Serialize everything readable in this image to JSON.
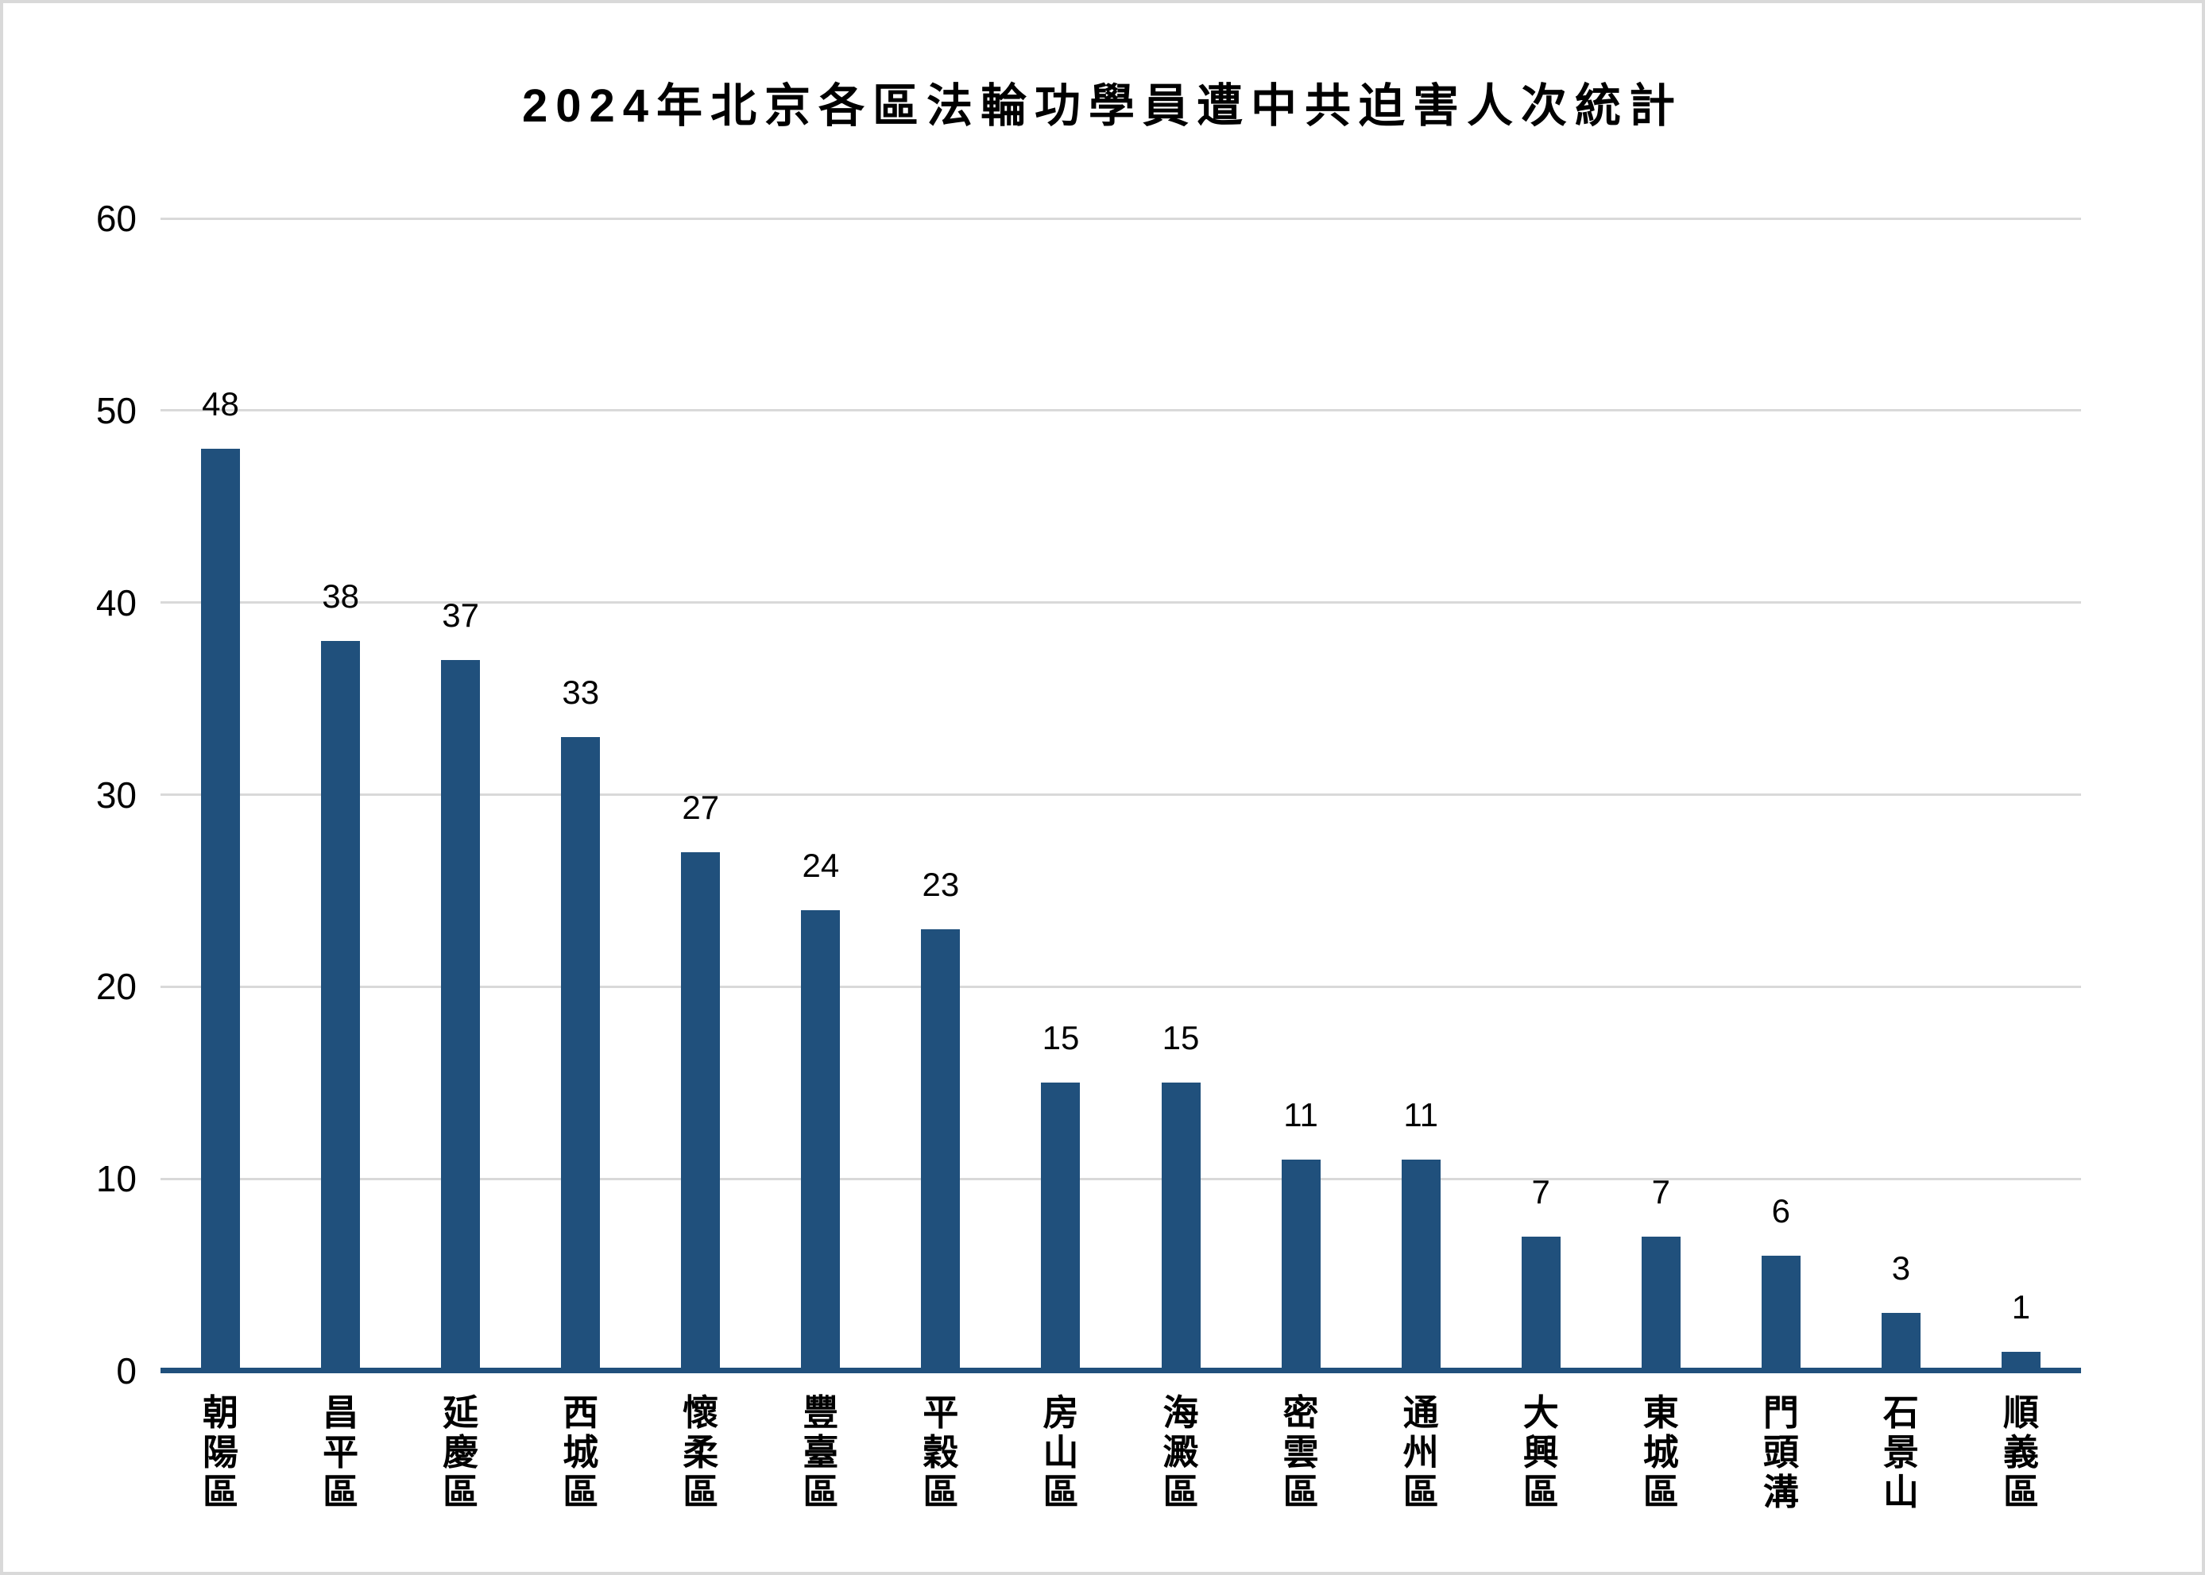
{
  "chart_data": {
    "type": "bar",
    "title": "2024年北京各區法輪功學員遭中共迫害人次統計",
    "categories": [
      "朝陽區",
      "昌平區",
      "延慶區",
      "西城區",
      "懷柔區",
      "豐臺區",
      "平穀區",
      "房山區",
      "海澱區",
      "密雲區",
      "通州區",
      "大興區",
      "東城區",
      "門頭溝",
      "石景山",
      "順義區"
    ],
    "values": [
      48,
      38,
      37,
      33,
      27,
      24,
      23,
      15,
      15,
      11,
      11,
      7,
      7,
      6,
      3,
      1
    ],
    "xlabel": "",
    "ylabel": "",
    "ylim": [
      0,
      60
    ],
    "yticks": [
      0,
      10,
      20,
      30,
      40,
      50,
      60
    ],
    "grid": true,
    "legend_position": "none",
    "data_labels": true,
    "category_label_orientation": "vertical"
  },
  "colors": {
    "bar": "#20507c",
    "axis_line": "#20507c",
    "gridline": "#d9d9d9",
    "text": "#000000",
    "background": "#ffffff",
    "chart_border": "#d9d9d9"
  }
}
